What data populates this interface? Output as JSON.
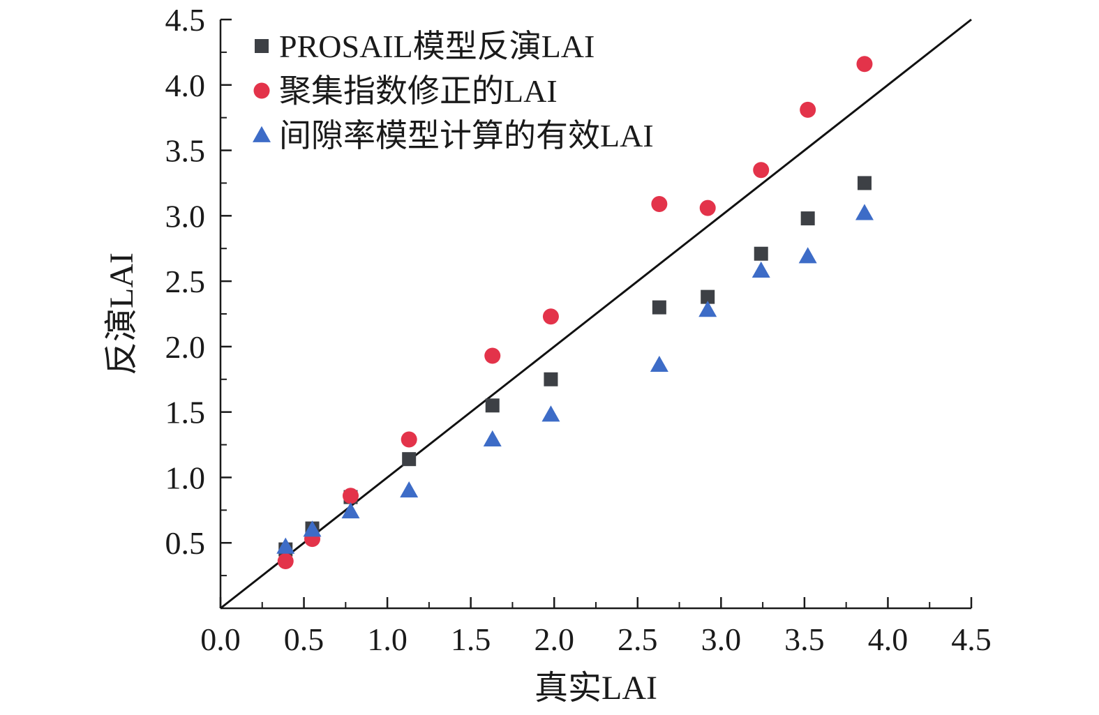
{
  "chart_data": {
    "type": "scatter",
    "xlabel": "真实LAI",
    "ylabel": "反演LAI",
    "xlim": [
      0,
      4.5
    ],
    "ylim": [
      0,
      4.5
    ],
    "x_ticks": [
      "0.0",
      "0.5",
      "1.0",
      "1.5",
      "2.0",
      "2.5",
      "3.0",
      "3.5",
      "4.0",
      "4.5"
    ],
    "y_ticks": [
      "0.5",
      "1.0",
      "1.5",
      "2.0",
      "2.5",
      "3.0",
      "3.5",
      "4.0",
      "4.5"
    ],
    "grid": false,
    "legend_position": "top-left",
    "reference_line": {
      "x": [
        0,
        4.5
      ],
      "y": [
        0,
        4.5
      ],
      "color": "#111111"
    },
    "series": [
      {
        "name": "PROSAIL模型反演LAI",
        "marker": "square",
        "color": "#3d4045",
        "x": [
          0.39,
          0.55,
          0.78,
          1.13,
          1.63,
          1.98,
          2.63,
          2.92,
          3.24,
          3.52,
          3.86
        ],
        "y": [
          0.45,
          0.61,
          0.85,
          1.14,
          1.55,
          1.75,
          2.3,
          2.38,
          2.71,
          2.98,
          3.25
        ]
      },
      {
        "name": "聚集指数修正的LAI",
        "marker": "circle",
        "color": "#e3334a",
        "x": [
          0.39,
          0.55,
          0.78,
          1.13,
          1.63,
          1.98,
          2.63,
          2.92,
          3.24,
          3.52,
          3.86
        ],
        "y": [
          0.36,
          0.53,
          0.86,
          1.29,
          1.93,
          2.23,
          3.09,
          3.06,
          3.35,
          3.81,
          4.16
        ]
      },
      {
        "name": "间隙率模型计算的有效LAI",
        "marker": "triangle",
        "color": "#3d6cc7",
        "x": [
          0.39,
          0.55,
          0.78,
          1.13,
          1.63,
          1.98,
          2.63,
          2.92,
          3.24,
          3.52,
          3.86
        ],
        "y": [
          0.47,
          0.6,
          0.74,
          0.9,
          1.29,
          1.48,
          1.86,
          2.28,
          2.58,
          2.69,
          3.02
        ]
      }
    ]
  }
}
